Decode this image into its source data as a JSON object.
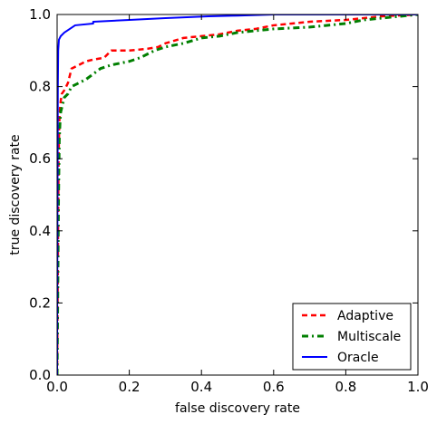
{
  "chart_data": {
    "type": "line",
    "xlabel": "false discovery rate",
    "ylabel": "true discovery rate",
    "xlim": [
      0.0,
      1.0
    ],
    "ylim": [
      0.0,
      1.0
    ],
    "x_ticks": [
      "0.0",
      "0.2",
      "0.4",
      "0.6",
      "0.8",
      "1.0"
    ],
    "y_ticks": [
      "0.0",
      "0.2",
      "0.4",
      "0.6",
      "0.8",
      "1.0"
    ],
    "grid": false,
    "legend_position": "lower-right",
    "series": [
      {
        "name": "Adaptive",
        "color": "#ff0000",
        "dash": "dashed",
        "points": [
          [
            0.0,
            0.0
          ],
          [
            0.002,
            0.3
          ],
          [
            0.004,
            0.6
          ],
          [
            0.006,
            0.7
          ],
          [
            0.008,
            0.74
          ],
          [
            0.01,
            0.76
          ],
          [
            0.013,
            0.78
          ],
          [
            0.02,
            0.79
          ],
          [
            0.025,
            0.8
          ],
          [
            0.03,
            0.81
          ],
          [
            0.04,
            0.85
          ],
          [
            0.06,
            0.86
          ],
          [
            0.08,
            0.87
          ],
          [
            0.1,
            0.875
          ],
          [
            0.13,
            0.88
          ],
          [
            0.15,
            0.9
          ],
          [
            0.2,
            0.9
          ],
          [
            0.25,
            0.905
          ],
          [
            0.28,
            0.91
          ],
          [
            0.3,
            0.92
          ],
          [
            0.35,
            0.935
          ],
          [
            0.4,
            0.94
          ],
          [
            0.45,
            0.945
          ],
          [
            0.5,
            0.955
          ],
          [
            0.55,
            0.96
          ],
          [
            0.6,
            0.97
          ],
          [
            0.65,
            0.975
          ],
          [
            0.7,
            0.98
          ],
          [
            0.8,
            0.985
          ],
          [
            0.85,
            0.99
          ],
          [
            0.9,
            0.995
          ],
          [
            1.0,
            1.0
          ]
        ]
      },
      {
        "name": "Multiscale",
        "color": "#007f00",
        "dash": "dash-dot",
        "points": [
          [
            0.0,
            0.0
          ],
          [
            0.002,
            0.25
          ],
          [
            0.004,
            0.5
          ],
          [
            0.006,
            0.65
          ],
          [
            0.008,
            0.7
          ],
          [
            0.01,
            0.73
          ],
          [
            0.015,
            0.75
          ],
          [
            0.02,
            0.77
          ],
          [
            0.03,
            0.78
          ],
          [
            0.04,
            0.8
          ],
          [
            0.06,
            0.81
          ],
          [
            0.08,
            0.82
          ],
          [
            0.1,
            0.835
          ],
          [
            0.12,
            0.85
          ],
          [
            0.15,
            0.86
          ],
          [
            0.2,
            0.87
          ],
          [
            0.23,
            0.88
          ],
          [
            0.27,
            0.9
          ],
          [
            0.3,
            0.91
          ],
          [
            0.35,
            0.92
          ],
          [
            0.4,
            0.935
          ],
          [
            0.45,
            0.94
          ],
          [
            0.5,
            0.95
          ],
          [
            0.55,
            0.955
          ],
          [
            0.6,
            0.96
          ],
          [
            0.7,
            0.965
          ],
          [
            0.8,
            0.975
          ],
          [
            0.85,
            0.985
          ],
          [
            0.9,
            0.99
          ],
          [
            1.0,
            1.0
          ]
        ]
      },
      {
        "name": "Oracle",
        "color": "#0000ff",
        "dash": "solid",
        "points": [
          [
            0.0,
            0.0
          ],
          [
            0.001,
            0.5
          ],
          [
            0.002,
            0.8
          ],
          [
            0.003,
            0.9
          ],
          [
            0.005,
            0.93
          ],
          [
            0.01,
            0.94
          ],
          [
            0.02,
            0.95
          ],
          [
            0.05,
            0.97
          ],
          [
            0.1,
            0.975
          ],
          [
            0.1,
            0.98
          ],
          [
            0.2,
            0.985
          ],
          [
            0.3,
            0.99
          ],
          [
            0.42,
            0.995
          ],
          [
            0.5,
            0.997
          ],
          [
            0.6,
            1.0
          ],
          [
            1.0,
            1.0
          ]
        ]
      }
    ]
  }
}
